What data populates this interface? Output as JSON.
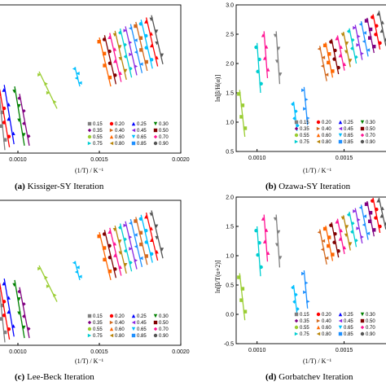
{
  "captions": [
    {
      "letter": "(a)",
      "text": " Kissiger-SY Iteration"
    },
    {
      "letter": "(b)",
      "text": " Ozawa-SY Iteration"
    },
    {
      "letter": "(c)",
      "text": " Lee-Beck Iteration"
    },
    {
      "letter": "(d)",
      "text": " Gorbatchev Iteration"
    }
  ],
  "xlabel": "(1/T) / K⁻¹",
  "ylabel_b": "ln[β/H(α)]",
  "ylabel_d": "ln[β/T(u+2)]",
  "colors": {
    "0.15": "#808080",
    "0.20": "#ff0000",
    "0.25": "#0000ff",
    "0.30": "#008000",
    "0.35": "#800080",
    "0.40": "#d2691e",
    "0.45": "#8a2be2",
    "0.50": "#800000",
    "0.55": "#9acd32",
    "0.60": "#ff6600",
    "0.65": "#00bfff",
    "0.70": "#ff1493",
    "0.75": "#00ced1",
    "0.80": "#b8860b",
    "0.85": "#1e90ff",
    "0.90": "#555555"
  },
  "chart_data": [
    {
      "type": "scatter",
      "panel": "a",
      "title": "Kissiger-SY Iteration",
      "xlabel": "(1/T) / K⁻¹",
      "ylabel": "",
      "xticks": [
        "0.0010",
        "0.0015",
        "0.0020"
      ],
      "xlim": [
        0.00088,
        0.002
      ],
      "ylim": [
        0,
        1
      ],
      "legend": [
        "0.15",
        "0.20",
        "0.25",
        "0.30",
        "0.35",
        "0.40",
        "0.45",
        "0.50",
        "0.55",
        "0.60",
        "0.65",
        "0.70",
        "0.75",
        "0.80",
        "0.85",
        "0.90"
      ],
      "legend_position": "bottom-right",
      "series_note": "each series is 4 points on a fitted line",
      "groups": [
        {
          "x1": 0.00085,
          "x2": 0.0011,
          "y_top": 0.35,
          "y_bot": -0.05
        },
        {
          "x1": 0.00093,
          "x2": 0.0011,
          "y_top": 0.55,
          "y_bot": 0.1
        },
        {
          "x1": 0.0012,
          "x2": 0.0013,
          "y_top": 0.72,
          "y_bot": 0.3
        },
        {
          "x1": 0.00134,
          "x2": 0.00192,
          "y_top": 0.98,
          "y_bot": 0.5
        }
      ]
    },
    {
      "type": "scatter",
      "panel": "b",
      "title": "Ozawa-SY Iteration",
      "xlabel": "(1/T) / K⁻¹",
      "ylabel": "ln[β/H(α)]",
      "xticks": [
        "0.0010",
        "0.0015"
      ],
      "yticks": [
        "0.5",
        "1.0",
        "1.5",
        "2.0",
        "2.5",
        "3.0"
      ],
      "xlim": [
        0.00088,
        0.00175
      ],
      "ylim": [
        0.5,
        3.0
      ],
      "legend": [
        "0.15",
        "0.20",
        "0.25",
        "0.30",
        "0.35",
        "0.40",
        "0.45",
        "0.50",
        "0.55",
        "0.60",
        "0.65",
        "0.70",
        "0.75",
        "0.80",
        "0.85",
        "0.90"
      ],
      "legend_position": "bottom-right"
    },
    {
      "type": "scatter",
      "panel": "c",
      "title": "Lee-Beck Iteration",
      "xlabel": "(1/T) / K⁻¹",
      "ylabel": "",
      "xticks": [
        "0.0010",
        "0.0015",
        "0.0020"
      ],
      "xlim": [
        0.00088,
        0.002
      ],
      "ylim": [
        0,
        1
      ],
      "legend": [
        "0.15",
        "0.20",
        "0.25",
        "0.30",
        "0.35",
        "0.40",
        "0.45",
        "0.50",
        "0.55",
        "0.60",
        "0.65",
        "0.70",
        "0.75",
        "0.80",
        "0.85",
        "0.90"
      ],
      "legend_position": "bottom-right"
    },
    {
      "type": "scatter",
      "panel": "d",
      "title": "Gorbatchev Iteration",
      "xlabel": "(1/T) / K⁻¹",
      "ylabel": "ln[β/T(u+2)]",
      "xticks": [
        "0.0010",
        "0.0015"
      ],
      "yticks": [
        "-0.5",
        "0.0",
        "0.5",
        "1.0",
        "1.5",
        "2.0"
      ],
      "xlim": [
        0.00088,
        0.00175
      ],
      "ylim": [
        -0.5,
        2.0
      ],
      "legend": [
        "0.15",
        "0.20",
        "0.25",
        "0.30",
        "0.35",
        "0.40",
        "0.45",
        "0.50",
        "0.55",
        "0.60",
        "0.65",
        "0.70",
        "0.75",
        "0.80",
        "0.85",
        "0.90"
      ],
      "legend_position": "bottom-right"
    }
  ]
}
